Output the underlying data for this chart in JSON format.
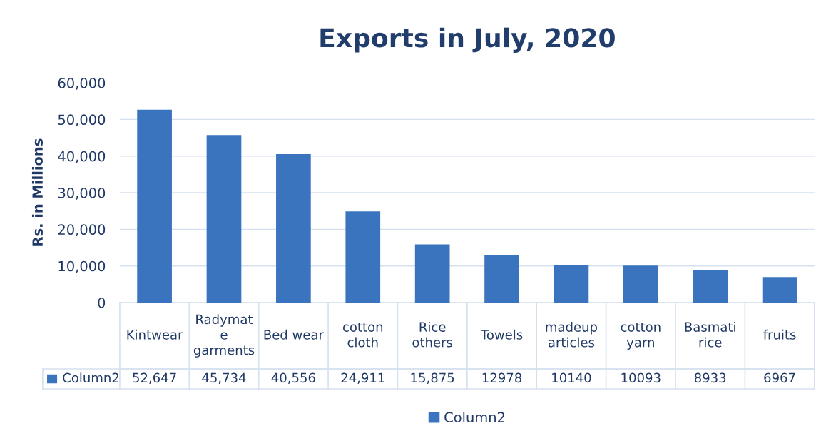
{
  "chart_data": {
    "type": "bar",
    "title": "Exports in July, 2020",
    "ylabel": "Rs. in Millions",
    "categories": [
      "Kintwear",
      "Radymat\ne\ngarments",
      "Bed wear",
      "cotton\ncloth",
      "Rice\nothers",
      "Towels",
      "madeup\narticles",
      "cotton\nyarn",
      "Basmati\nrice",
      "fruits"
    ],
    "series": [
      {
        "name": "Column2",
        "color": "#3a74bf",
        "values": [
          52647,
          45734,
          40556,
          24911,
          15875,
          12978,
          10140,
          10093,
          8933,
          6967
        ],
        "value_labels": [
          "52,647",
          "45,734",
          "40,556",
          "24,911",
          "15,875",
          "12978",
          "10140",
          "10093",
          "8933",
          "6967"
        ]
      }
    ],
    "ylim": [
      0,
      60000
    ],
    "yticks": [
      {
        "value": 0,
        "label": "0"
      },
      {
        "value": 10000,
        "label": "10,000"
      },
      {
        "value": 20000,
        "label": "20,000"
      },
      {
        "value": 30000,
        "label": "30,000"
      },
      {
        "value": 40000,
        "label": "40,000"
      },
      {
        "value": 50000,
        "label": "50,000"
      },
      {
        "value": 60000,
        "label": "60,000"
      }
    ],
    "grid": "y",
    "legend": "bottom"
  }
}
